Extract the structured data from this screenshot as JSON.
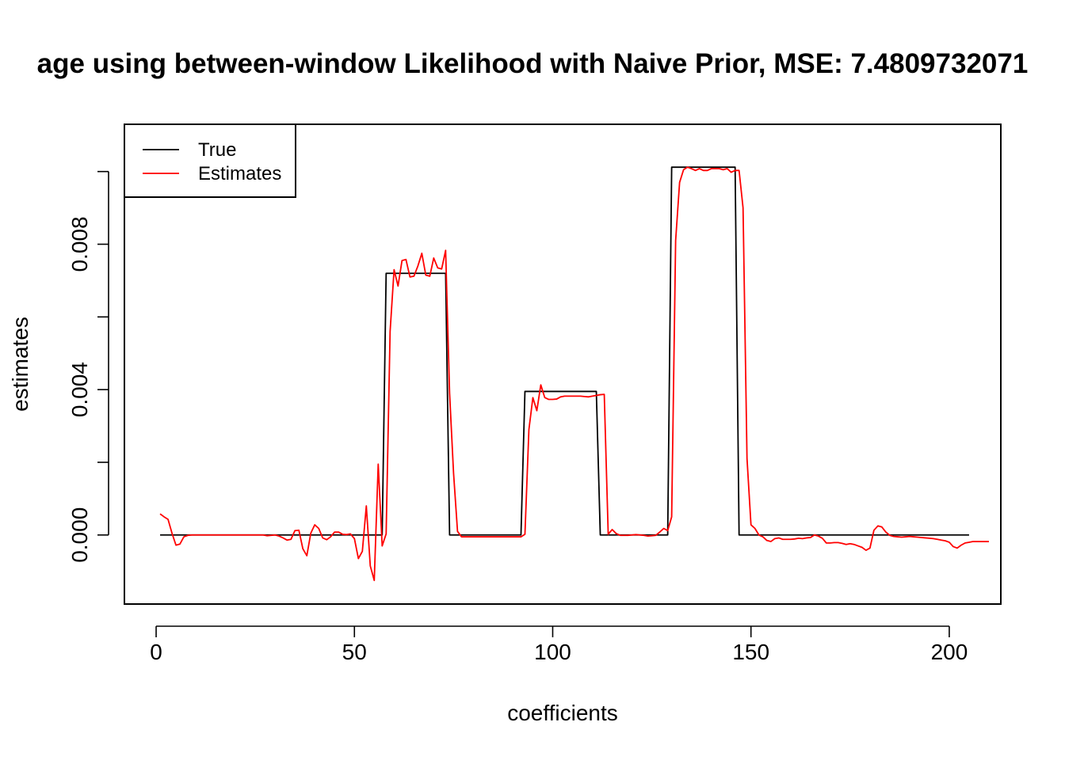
{
  "chart_data": {
    "type": "line",
    "title": "age using between-window Likelihood with Naive Prior, MSE: 7.4809732071",
    "xlabel": "coefficients",
    "ylabel": "estimates",
    "xlim": [
      -8,
      213
    ],
    "ylim": [
      -0.0019,
      0.0113
    ],
    "x_ticks": [
      0,
      50,
      100,
      150,
      200
    ],
    "x_tick_labels": [
      "0",
      "50",
      "100",
      "150",
      "200"
    ],
    "y_ticks": [
      0.0,
      0.002,
      0.004,
      0.006,
      0.008,
      0.01
    ],
    "y_tick_labels": [
      "0.000",
      "",
      "0.004",
      "",
      "0.008",
      ""
    ],
    "grid": false,
    "legend_position": "top-left",
    "series": [
      {
        "name": "True",
        "color": "#000000",
        "points": [
          [
            1,
            0
          ],
          [
            57,
            0
          ],
          [
            58,
            0.0072
          ],
          [
            73,
            0.0072
          ],
          [
            74,
            0
          ],
          [
            92,
            0
          ],
          [
            93,
            0.00395
          ],
          [
            111,
            0.00395
          ],
          [
            112,
            0
          ],
          [
            129,
            0
          ],
          [
            130,
            0.01012
          ],
          [
            146,
            0.01012
          ],
          [
            147,
            0
          ],
          [
            205,
            0
          ]
        ]
      },
      {
        "name": "Estimates",
        "color": "#ff0000",
        "x_start": 1,
        "values": [
          0.00058,
          0.0005,
          0.00043,
          5e-05,
          -0.00028,
          -0.00025,
          -5e-05,
          -1e-05,
          0,
          0,
          0,
          0,
          0,
          0,
          0,
          0,
          0,
          0,
          0,
          0,
          0,
          0,
          0,
          0,
          0,
          0,
          0,
          -2e-05,
          -1e-05,
          0,
          -3e-05,
          -8e-05,
          -0.00014,
          -0.00012,
          0.00012,
          0.00013,
          -0.00038,
          -0.00057,
          5e-05,
          0.00028,
          0.00018,
          -8e-05,
          -0.00013,
          -5e-05,
          8e-05,
          8e-05,
          2e-05,
          1e-05,
          3e-05,
          -0.0001,
          -0.00065,
          -0.00045,
          0.0008,
          -0.00085,
          -0.00125,
          0.00195,
          -0.0003,
          3e-05,
          0.0056,
          0.0073,
          0.00685,
          0.00755,
          0.00758,
          0.0071,
          0.00712,
          0.0074,
          0.00775,
          0.00715,
          0.00712,
          0.00762,
          0.00735,
          0.00732,
          0.00783,
          0.0039,
          0.0017,
          0.0001,
          -5e-05,
          -5e-05,
          -5e-05,
          -5e-05,
          -5e-05,
          -5e-05,
          -5e-05,
          -5e-05,
          -5e-05,
          -5e-05,
          -5e-05,
          -5e-05,
          -5e-05,
          -5e-05,
          -5e-05,
          -5e-05,
          2e-05,
          0.0029,
          0.00378,
          0.00342,
          0.00413,
          0.00378,
          0.00373,
          0.00373,
          0.00374,
          0.0038,
          0.00382,
          0.00382,
          0.00382,
          0.00382,
          0.00382,
          0.00381,
          0.0038,
          0.00382,
          0.00384,
          0.00386,
          0.00387,
          2e-05,
          0.00015,
          4e-05,
          -1e-05,
          -1e-05,
          -1e-05,
          0,
          1e-05,
          0,
          -1e-05,
          -3e-05,
          -2e-05,
          -1e-05,
          8e-05,
          0.00018,
          0.00012,
          0.0005,
          0.0081,
          0.0097,
          0.01005,
          0.01012,
          0.01008,
          0.01003,
          0.01008,
          0.01003,
          0.01003,
          0.01008,
          0.01008,
          0.01008,
          0.01005,
          0.01008,
          0.00998,
          0.01003,
          0.01003,
          0.009,
          0.0021,
          0.00028,
          0.00018,
          0.0,
          -5e-05,
          -0.00015,
          -0.00018,
          -0.0001,
          -8e-05,
          -0.00012,
          -0.00012,
          -0.00012,
          -0.00011,
          -9e-05,
          -0.0001,
          -8e-05,
          -7e-05,
          0,
          -3e-05,
          -9e-05,
          -0.00022,
          -0.00022,
          -0.00021,
          -0.00021,
          -0.00023,
          -0.00026,
          -0.00024,
          -0.00026,
          -0.0003,
          -0.00034,
          -0.00042,
          -0.00036,
          0.00013,
          0.00025,
          0.00022,
          8e-05,
          -1e-05,
          -4e-05,
          -5e-05,
          -6e-05,
          -5e-05,
          -4e-05,
          -5e-05,
          -6e-05,
          -7e-05,
          -8e-05,
          -9e-05,
          -0.0001,
          -0.00012,
          -0.00014,
          -0.00016,
          -0.0002,
          -0.00032,
          -0.00036,
          -0.00028,
          -0.00022,
          -0.0002,
          -0.00018,
          -0.00018,
          -0.00018,
          -0.00018,
          -0.00018
        ]
      }
    ]
  }
}
